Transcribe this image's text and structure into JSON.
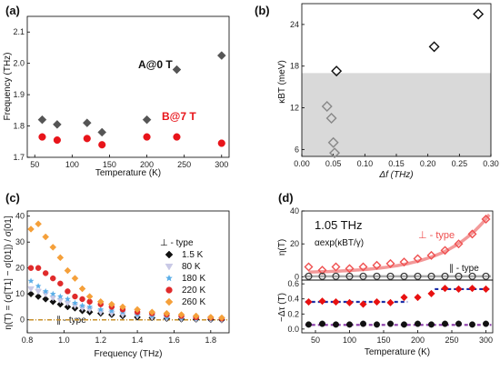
{
  "chart_data": [
    {
      "panel": "(a)",
      "type": "scatter",
      "xlabel": "Temperature (K)",
      "ylabel": "Frequency (THz)",
      "xlim": [
        40,
        310
      ],
      "ylim": [
        1.7,
        2.15
      ],
      "xticks": [
        50,
        100,
        150,
        200,
        250,
        300
      ],
      "yticks": [
        1.7,
        1.8,
        1.9,
        2.0,
        2.1
      ],
      "tick_labels_x": [
        "50",
        "100",
        "150",
        "200",
        "250",
        "300"
      ],
      "tick_labels_y": [
        "1.7",
        "1.8",
        "1.9",
        "2.0",
        "2.1"
      ],
      "annotations": [
        {
          "text": "A@0 T",
          "color": "#111111"
        },
        {
          "text": "B@7 T",
          "color": "#e8141a"
        }
      ],
      "series": [
        {
          "marker": "diamond",
          "color": "#555555",
          "x": [
            60,
            80,
            120,
            140,
            200,
            240,
            300
          ],
          "y": [
            1.82,
            1.805,
            1.81,
            1.78,
            1.82,
            1.98,
            2.025
          ]
        },
        {
          "marker": "circle",
          "color": "#e8141a",
          "x": [
            60,
            80,
            120,
            140,
            200,
            240,
            300
          ],
          "y": [
            1.765,
            1.755,
            1.76,
            1.74,
            1.765,
            1.765,
            1.745
          ]
        }
      ]
    },
    {
      "panel": "(b)",
      "type": "scatter",
      "xlabel": "Δf  (THz)",
      "ylabel": "κBT (meV)",
      "xlim": [
        0.0,
        0.3
      ],
      "ylim": [
        5,
        27
      ],
      "xticks": [
        0.0,
        0.05,
        0.1,
        0.15,
        0.2,
        0.25,
        0.3
      ],
      "yticks": [
        6,
        12,
        18,
        24
      ],
      "tick_labels_x": [
        "0.00",
        "0.05",
        "0.10",
        "0.15",
        "0.20",
        "0.25",
        "0.30"
      ],
      "tick_labels_y": [
        "6",
        "12",
        "18",
        "24"
      ],
      "shaded_region_y": [
        5,
        17
      ],
      "series": [
        {
          "marker": "open-diamond",
          "color": "#888888",
          "x": [
            0.04,
            0.047,
            0.05,
            0.052
          ],
          "y": [
            12.2,
            10.5,
            7.0,
            5.5
          ]
        },
        {
          "marker": "open-diamond",
          "color": "#111111",
          "x": [
            0.055,
            0.21,
            0.28
          ],
          "y": [
            17.3,
            20.8,
            25.5
          ]
        }
      ]
    },
    {
      "panel": "(c)",
      "type": "scatter",
      "xlabel": "Frequency (THz)",
      "ylabel": "η(T) = (σ[T1] − σ[01]) / σ[01]",
      "xlim": [
        0.8,
        1.9
      ],
      "ylim": [
        -5,
        42
      ],
      "xticks": [
        0.8,
        1.0,
        1.2,
        1.4,
        1.6,
        1.8
      ],
      "yticks": [
        0,
        10,
        20,
        30,
        40
      ],
      "tick_labels_x": [
        "0.8",
        "1.0",
        "1.2",
        "1.4",
        "1.6",
        "1.8"
      ],
      "tick_labels_y": [
        "0",
        "10",
        "20",
        "30",
        "40"
      ],
      "legend_title": "⊥ - type",
      "parallel_label": "∥ - type",
      "baseline_y": 0,
      "series": [
        {
          "name": "1.5 K",
          "marker": "diamond",
          "color": "#111111",
          "x": [
            0.82,
            0.86,
            0.9,
            0.94,
            0.98,
            1.02,
            1.06,
            1.1,
            1.14,
            1.2,
            1.26,
            1.32,
            1.4,
            1.48,
            1.56,
            1.64,
            1.72,
            1.8,
            1.86
          ],
          "y": [
            10,
            9,
            8,
            7,
            6,
            5,
            4.5,
            3.5,
            3,
            2.5,
            2,
            1.5,
            1,
            0.8,
            0.5,
            0.3,
            0.2,
            0.1,
            0
          ]
        },
        {
          "name": "80 K",
          "marker": "triangle",
          "color": "#c9c9e6",
          "x": [
            0.82,
            0.86,
            0.9,
            0.94,
            0.98,
            1.02,
            1.06,
            1.1,
            1.14,
            1.2,
            1.26,
            1.32,
            1.4,
            1.48,
            1.56,
            1.64,
            1.72,
            1.8,
            1.86
          ],
          "y": [
            12,
            11,
            10,
            8.5,
            7.5,
            6.5,
            5.5,
            4.5,
            4,
            3,
            2.5,
            2,
            1.5,
            1,
            0.7,
            0.5,
            0.3,
            0.2,
            0.1
          ]
        },
        {
          "name": "180 K",
          "marker": "star",
          "color": "#5aaee8",
          "x": [
            0.82,
            0.86,
            0.9,
            0.94,
            0.98,
            1.02,
            1.06,
            1.1,
            1.14,
            1.2,
            1.26,
            1.32,
            1.4,
            1.48,
            1.56,
            1.64,
            1.72,
            1.8,
            1.86
          ],
          "y": [
            15,
            13,
            11,
            10,
            9,
            8,
            6.5,
            5.5,
            5,
            4,
            3.5,
            3,
            2,
            1.5,
            1,
            0.7,
            0.5,
            0.3,
            0.2
          ]
        },
        {
          "name": "220 K",
          "marker": "circle",
          "color": "#e02b2b",
          "x": [
            0.82,
            0.86,
            0.9,
            0.94,
            0.98,
            1.02,
            1.06,
            1.1,
            1.14,
            1.2,
            1.26,
            1.32,
            1.4,
            1.48,
            1.56,
            1.64,
            1.72,
            1.8,
            1.86
          ],
          "y": [
            20,
            20,
            18,
            16,
            14,
            11,
            9,
            8,
            7,
            6,
            5,
            4,
            3,
            2.5,
            2,
            1.5,
            1,
            0.8,
            0.5
          ]
        },
        {
          "name": "260 K",
          "marker": "diamond",
          "color": "#f5a03a",
          "x": [
            0.82,
            0.86,
            0.9,
            0.94,
            0.98,
            1.02,
            1.06,
            1.1,
            1.14,
            1.2,
            1.26,
            1.32,
            1.4,
            1.48,
            1.56,
            1.64,
            1.72,
            1.8,
            1.86
          ],
          "y": [
            35,
            37,
            32,
            28,
            24,
            19,
            16,
            12,
            9,
            7,
            6,
            5,
            4,
            3,
            2.5,
            2,
            1.5,
            1,
            0.8
          ]
        }
      ]
    },
    {
      "panel": "(d)",
      "type": "scatter",
      "title": "1.05 THz",
      "formula": "αexp(κBT/γ)",
      "xlabel": "Temperature (K)",
      "xlim": [
        30,
        310
      ],
      "xticks": [
        50,
        100,
        150,
        200,
        250,
        300
      ],
      "tick_labels_x": [
        "50",
        "100",
        "150",
        "200",
        "250",
        "300"
      ],
      "top": {
        "ylabel": "η(T)",
        "ylim": [
          -2,
          40
        ],
        "yticks": [
          0,
          20,
          40
        ],
        "tick_labels_y": [
          "0",
          "20",
          "40"
        ],
        "perp_label": "⊥ - type",
        "par_label": "∥ - type",
        "perp_color": "#f08080",
        "series": [
          {
            "name": "⊥ - type",
            "marker": "open-diamond",
            "color": "#ef5050",
            "x": [
              40,
              60,
              80,
              100,
              120,
              140,
              160,
              180,
              200,
              220,
              240,
              260,
              280,
              300
            ],
            "y": [
              6,
              4,
              6,
              5,
              6,
              7,
              8,
              9,
              11,
              13,
              16,
              20,
              26,
              35
            ]
          },
          {
            "name": "∥ - type",
            "marker": "open-circle",
            "color": "#333333",
            "x": [
              40,
              60,
              80,
              100,
              120,
              140,
              160,
              180,
              200,
              220,
              240,
              260,
              280,
              300
            ],
            "y": [
              0.3,
              0.3,
              0.3,
              0.3,
              0.3,
              0.3,
              0.3,
              0.3,
              0.3,
              0.3,
              0.3,
              0.3,
              0.3,
              0.3
            ]
          }
        ]
      },
      "bottom": {
        "ylabel": "−Δτ (T)",
        "ylim": [
          -0.05,
          0.65
        ],
        "yticks": [
          0.0,
          0.2,
          0.4,
          0.6
        ],
        "tick_labels_y": [
          "0.0",
          "0.2",
          "0.4",
          "0.6"
        ],
        "series": [
          {
            "name": "red",
            "marker": "diamond",
            "color": "#e81010",
            "x": [
              40,
              60,
              80,
              100,
              120,
              140,
              160,
              180,
              200,
              220,
              240,
              260,
              280,
              300
            ],
            "y": [
              0.36,
              0.37,
              0.36,
              0.35,
              0.33,
              0.36,
              0.35,
              0.42,
              0.42,
              0.47,
              0.54,
              0.53,
              0.54,
              0.53
            ]
          },
          {
            "name": "black",
            "marker": "circle",
            "color": "#111111",
            "x": [
              40,
              60,
              80,
              100,
              120,
              140,
              160,
              180,
              200,
              220,
              240,
              260,
              280,
              300
            ],
            "y": [
              0.06,
              0.07,
              0.06,
              0.06,
              0.07,
              0.06,
              0.07,
              0.06,
              0.07,
              0.06,
              0.07,
              0.07,
              0.06,
              0.07
            ]
          }
        ]
      }
    }
  ]
}
